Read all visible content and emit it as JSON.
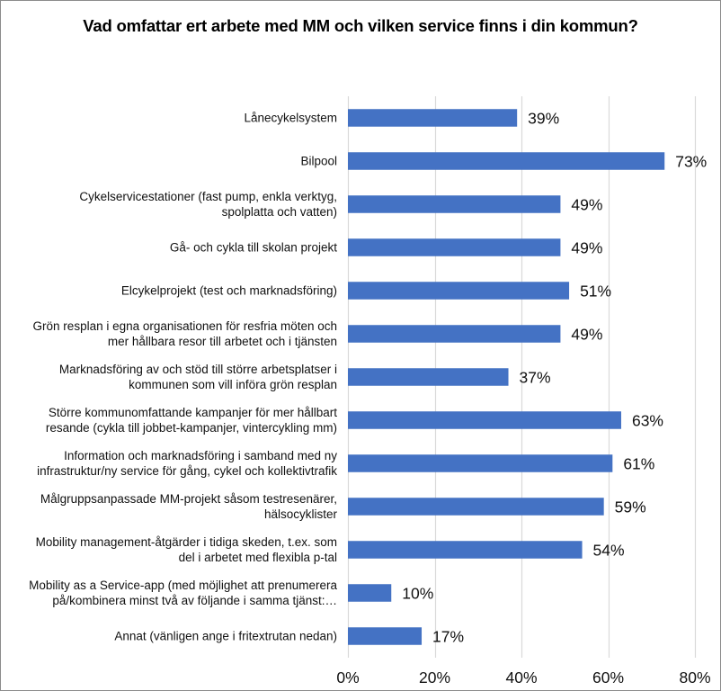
{
  "chart_data": {
    "type": "bar",
    "orientation": "horizontal",
    "title": "Vad omfattar ert arbete med MM och vilken service finns i din kommun?",
    "categories": [
      [
        "Lånecykelsystem"
      ],
      [
        "Bilpool"
      ],
      [
        "Cykelservicestationer (fast pump, enkla verktyg,",
        "spolplatta och vatten)"
      ],
      [
        "Gå- och cykla till skolan projekt"
      ],
      [
        "Elcykelprojekt (test och marknadsföring)"
      ],
      [
        "Grön resplan i egna organisationen för resfria möten och",
        "mer hållbara resor till arbetet och i tjänsten"
      ],
      [
        "Marknadsföring av och stöd till större arbetsplatser i",
        "kommunen som vill införa grön resplan"
      ],
      [
        "Större kommunomfattande kampanjer för mer hållbart",
        "resande (cykla till jobbet-kampanjer, vintercykling mm)"
      ],
      [
        "Information och marknadsföring i samband med ny",
        "infrastruktur/ny service för gång, cykel och kollektivtrafik"
      ],
      [
        "Målgruppsanpassade MM-projekt såsom testresenärer,",
        "hälsocyklister"
      ],
      [
        "Mobility management-åtgärder i tidiga skeden, t.ex. som",
        "del i arbetet med flexibla p-tal"
      ],
      [
        "Mobility as a Service-app (med möjlighet att prenumerera",
        "på/kombinera minst två av följande i samma tjänst:…"
      ],
      [
        "Annat (vänligen ange i fritextrutan nedan)"
      ]
    ],
    "values": [
      39,
      73,
      49,
      49,
      51,
      49,
      37,
      63,
      61,
      59,
      54,
      10,
      17
    ],
    "value_labels": [
      "39%",
      "73%",
      "49%",
      "49%",
      "51%",
      "49%",
      "37%",
      "63%",
      "61%",
      "59%",
      "54%",
      "10%",
      "17%"
    ],
    "xlim": [
      0,
      80
    ],
    "x_ticks": [
      0,
      20,
      40,
      60,
      80
    ],
    "x_tick_labels": [
      "0%",
      "20%",
      "40%",
      "60%",
      "80%"
    ],
    "grid": "vertical",
    "legend": "none",
    "bar_color": "#4472c4",
    "grid_color": "#d9d9d9"
  }
}
